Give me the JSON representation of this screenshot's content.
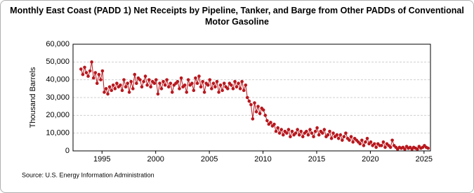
{
  "chart_data": {
    "type": "line",
    "title": "Monthly East Coast (PADD 1) Net Receipts by Pipeline, Tanker, and Barge from Other PADDs of Conventional Motor Gasoline",
    "y_label": "Thousand Barrels",
    "source": "Source: U.S. Energy Information Administration",
    "x": [
      1993.04,
      1993.21,
      1993.38,
      1993.54,
      1993.71,
      1993.88,
      1994.04,
      1994.21,
      1994.38,
      1994.54,
      1994.71,
      1994.88,
      1995.04,
      1995.21,
      1995.38,
      1995.54,
      1995.71,
      1995.88,
      1996.04,
      1996.21,
      1996.38,
      1996.54,
      1996.71,
      1996.88,
      1997.04,
      1997.21,
      1997.38,
      1997.54,
      1997.71,
      1997.88,
      1998.04,
      1998.21,
      1998.38,
      1998.54,
      1998.71,
      1998.88,
      1999.04,
      1999.21,
      1999.38,
      1999.54,
      1999.71,
      1999.88,
      2000.04,
      2000.21,
      2000.38,
      2000.54,
      2000.71,
      2000.88,
      2001.04,
      2001.21,
      2001.38,
      2001.54,
      2001.71,
      2001.88,
      2002.04,
      2002.21,
      2002.38,
      2002.54,
      2002.71,
      2002.88,
      2003.04,
      2003.21,
      2003.38,
      2003.54,
      2003.71,
      2003.88,
      2004.04,
      2004.21,
      2004.38,
      2004.54,
      2004.71,
      2004.88,
      2005.04,
      2005.21,
      2005.38,
      2005.54,
      2005.71,
      2005.88,
      2006.04,
      2006.21,
      2006.38,
      2006.54,
      2006.71,
      2006.88,
      2007.04,
      2007.21,
      2007.38,
      2007.54,
      2007.71,
      2007.88,
      2008.04,
      2008.21,
      2008.38,
      2008.54,
      2008.71,
      2008.88,
      2009.04,
      2009.21,
      2009.38,
      2009.54,
      2009.71,
      2009.88,
      2010.04,
      2010.21,
      2010.38,
      2010.54,
      2010.71,
      2010.88,
      2011.04,
      2011.21,
      2011.38,
      2011.54,
      2011.71,
      2011.88,
      2012.04,
      2012.21,
      2012.38,
      2012.54,
      2012.71,
      2012.88,
      2013.04,
      2013.21,
      2013.38,
      2013.54,
      2013.71,
      2013.88,
      2014.04,
      2014.21,
      2014.38,
      2014.54,
      2014.71,
      2014.88,
      2015.04,
      2015.21,
      2015.38,
      2015.54,
      2015.71,
      2015.88,
      2016.04,
      2016.21,
      2016.38,
      2016.54,
      2016.71,
      2016.88,
      2017.04,
      2017.21,
      2017.38,
      2017.54,
      2017.71,
      2017.88,
      2018.04,
      2018.21,
      2018.38,
      2018.54,
      2018.71,
      2018.88,
      2019.04,
      2019.21,
      2019.38,
      2019.54,
      2019.71,
      2019.88,
      2020.04,
      2020.21,
      2020.38,
      2020.54,
      2020.71,
      2020.88,
      2021.04,
      2021.21,
      2021.38,
      2021.54,
      2021.71,
      2021.88,
      2022.04,
      2022.21,
      2022.38,
      2022.54,
      2022.71,
      2022.88,
      2023.04,
      2023.21,
      2023.38,
      2023.54,
      2023.71,
      2023.88,
      2024.04,
      2024.21,
      2024.38,
      2024.54,
      2024.71,
      2024.88,
      2025.04,
      2025.21,
      2025.38
    ],
    "series": [
      {
        "color": "#b8181e",
        "values": [
          46000,
          43000,
          47000,
          44000,
          42000,
          45000,
          50000,
          41000,
          44000,
          38000,
          43000,
          40000,
          45000,
          33000,
          35000,
          32000,
          36000,
          34000,
          37000,
          35000,
          38000,
          36000,
          37000,
          34000,
          40000,
          36000,
          38000,
          33000,
          39000,
          35000,
          43000,
          38000,
          41000,
          40000,
          36000,
          39000,
          42000,
          37000,
          40000,
          36000,
          39000,
          38000,
          40000,
          32000,
          38000,
          35000,
          39000,
          37000,
          40000,
          36000,
          38000,
          33000,
          37000,
          38000,
          39000,
          35000,
          41000,
          36000,
          37000,
          33000,
          40000,
          37000,
          38000,
          34000,
          41000,
          38000,
          42000,
          36000,
          39000,
          33000,
          38000,
          37000,
          40000,
          35000,
          38000,
          36000,
          39000,
          33000,
          37000,
          34000,
          38000,
          36000,
          35000,
          38000,
          37000,
          35000,
          39000,
          36000,
          38000,
          35000,
          39000,
          34000,
          37000,
          30000,
          28000,
          26000,
          18000,
          27000,
          22000,
          25000,
          21000,
          24000,
          23000,
          20000,
          17000,
          15000,
          16000,
          14000,
          15000,
          11000,
          13000,
          10000,
          12000,
          9000,
          11000,
          10000,
          12000,
          8000,
          11000,
          9000,
          10000,
          12000,
          9000,
          11000,
          8000,
          10000,
          11000,
          9000,
          12000,
          10000,
          8000,
          11000,
          13000,
          9000,
          11000,
          10000,
          12000,
          8000,
          9000,
          11000,
          7000,
          10000,
          8000,
          9000,
          7000,
          9000,
          6000,
          8000,
          10000,
          7000,
          6000,
          8000,
          5000,
          7000,
          6000,
          5000,
          4000,
          6000,
          3000,
          5000,
          7000,
          4000,
          5000,
          3000,
          4000,
          2000,
          4000,
          3000,
          3000,
          5000,
          2000,
          4000,
          3000,
          2000,
          6000,
          3000,
          2000,
          1000,
          2000,
          1500,
          2000,
          1000,
          2500,
          1500,
          2000,
          1000,
          2000,
          1500,
          1000,
          2500,
          1500,
          2000,
          3000,
          2000,
          1500
        ]
      }
    ],
    "xlim": [
      1992.3,
      2025.6
    ],
    "xticks": [
      1995,
      2000,
      2005,
      2010,
      2015,
      2020,
      2025
    ],
    "ylim": [
      0,
      60000
    ],
    "yticks": [
      0,
      {
        "value": 10000,
        "label": "10,000"
      },
      {
        "value": 20000,
        "label": "20,000"
      },
      {
        "value": 30000,
        "label": "30,000"
      },
      {
        "value": 40000,
        "label": "40,000"
      },
      {
        "value": 50000,
        "label": "50,000"
      },
      {
        "value": 60000,
        "label": "60,000"
      }
    ],
    "grid": true
  }
}
